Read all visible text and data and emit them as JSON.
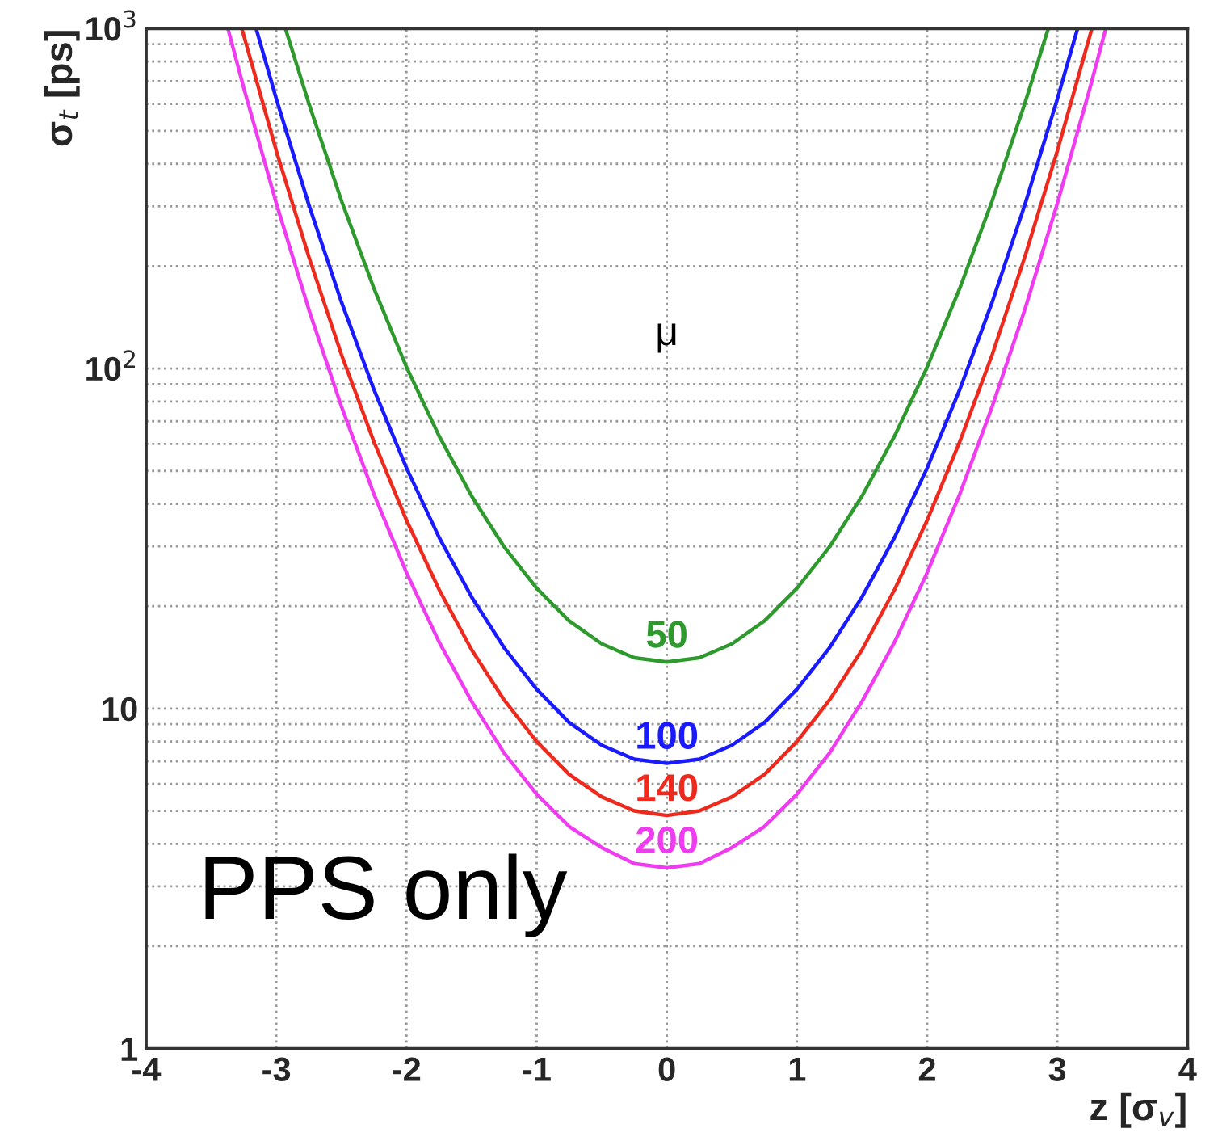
{
  "chart_data": {
    "type": "line",
    "xlabel": "z [σ$_{v}$]",
    "ylabel": "σ$_{t}$ [ps]",
    "log": "y",
    "grid": true,
    "marker": "none",
    "line_style": "solid",
    "xlim": [
      -4,
      4
    ],
    "xticks": [
      -4,
      -3,
      -2,
      -1,
      0,
      1,
      2,
      3,
      4
    ],
    "ylim": [
      1,
      1000
    ],
    "yticks": [
      1,
      10,
      {
        "value": 100,
        "label": "10$^{2}$"
      },
      {
        "value": 1000,
        "label": "10$^{3}$"
      }
    ],
    "series": [
      {
        "name": "50",
        "color": "#2e9a2e",
        "x": [
          -2.93,
          -2.75,
          -2.5,
          -2.25,
          -2,
          -1.75,
          -1.5,
          -1.25,
          -1,
          -0.75,
          -0.5,
          -0.25,
          0,
          0.25,
          0.5,
          0.75,
          1,
          1.25,
          1.5,
          1.75,
          2,
          2.25,
          2.5,
          2.75,
          2.93
        ],
        "values": [
          1000,
          602,
          312,
          172,
          101,
          63.4,
          42.2,
          29.9,
          22.6,
          18.1,
          15.5,
          14.1,
          13.7,
          14.1,
          15.5,
          18.1,
          22.6,
          29.9,
          42.2,
          63.4,
          101,
          172,
          312,
          602,
          1000
        ]
      },
      {
        "name": "100",
        "color": "#1a1aff",
        "x": [
          -3.155,
          -3,
          -2.75,
          -2.5,
          -2.25,
          -2,
          -1.75,
          -1.5,
          -1.25,
          -1,
          -0.75,
          -0.5,
          -0.25,
          0,
          0.25,
          0.5,
          0.75,
          1,
          1.25,
          1.5,
          1.75,
          2,
          2.25,
          2.5,
          2.75,
          3,
          3.155
        ],
        "values": [
          1000,
          621,
          303,
          157,
          86.7,
          51,
          31.9,
          21.3,
          15.1,
          11.4,
          9.1,
          7.8,
          7.1,
          6.9,
          7.1,
          7.8,
          9.1,
          11.4,
          15.1,
          21.3,
          31.9,
          51,
          86.7,
          157,
          303,
          621,
          1000
        ]
      },
      {
        "name": "140",
        "color": "#ee2a1e",
        "x": [
          -3.265,
          -3,
          -2.75,
          -2.5,
          -2.25,
          -2,
          -1.75,
          -1.5,
          -1.25,
          -1,
          -0.75,
          -0.5,
          -0.25,
          0,
          0.25,
          0.5,
          0.75,
          1,
          1.25,
          1.5,
          1.75,
          2,
          2.25,
          2.5,
          2.75,
          3,
          3.265
        ],
        "values": [
          1000,
          437,
          213,
          110,
          60.9,
          35.8,
          22.4,
          14.9,
          10.6,
          8.0,
          6.4,
          5.5,
          5.0,
          4.85,
          5.0,
          5.5,
          6.4,
          8.0,
          10.6,
          14.9,
          22.4,
          35.8,
          60.9,
          110,
          213,
          437,
          1000
        ]
      },
      {
        "name": "200",
        "color": "#f03cf0",
        "x": [
          -3.372,
          -3.25,
          -3,
          -2.75,
          -2.5,
          -2.25,
          -2,
          -1.75,
          -1.5,
          -1.25,
          -1,
          -0.75,
          -0.5,
          -0.25,
          0,
          0.25,
          0.5,
          0.75,
          1,
          1.25,
          1.5,
          1.75,
          2,
          2.25,
          2.5,
          2.75,
          3,
          3.25,
          3.372
        ],
        "values": [
          1000,
          668,
          306,
          149,
          77.4,
          42.7,
          25.1,
          15.7,
          10.5,
          7.4,
          5.6,
          4.5,
          3.9,
          3.5,
          3.4,
          3.5,
          3.9,
          4.5,
          5.6,
          7.4,
          10.5,
          15.7,
          25.1,
          42.7,
          77.4,
          149,
          306,
          668,
          1000
        ]
      }
    ],
    "annotations": [
      "μ",
      "PPS only"
    ]
  }
}
